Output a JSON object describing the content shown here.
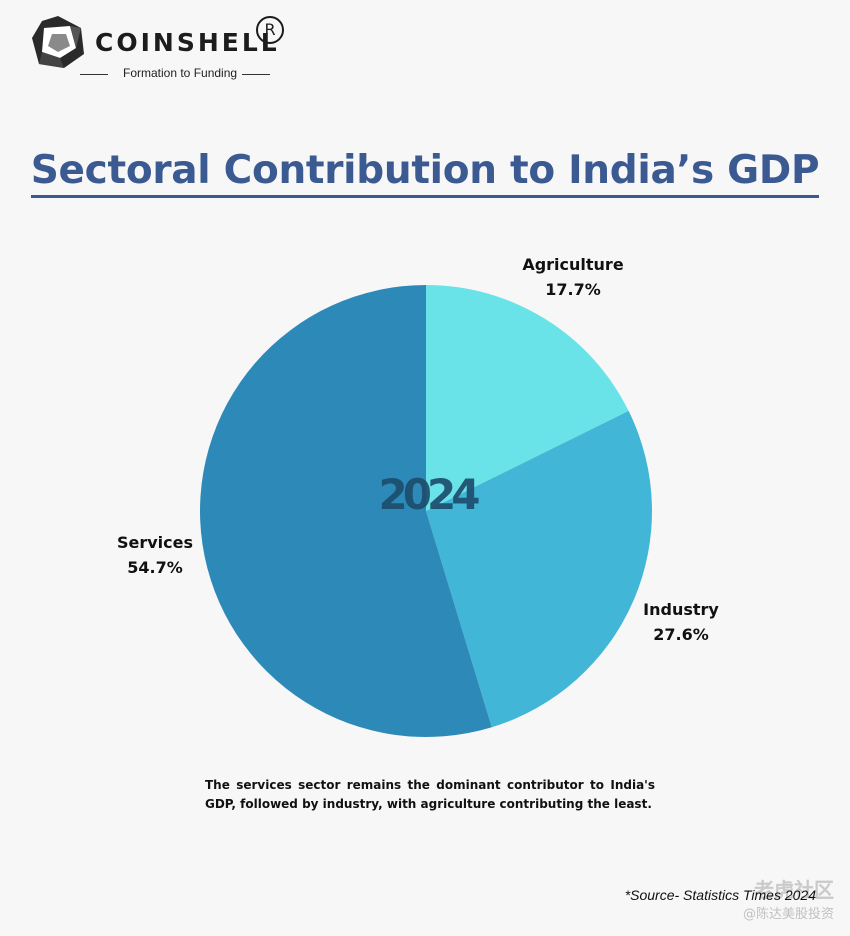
{
  "brand": {
    "name": "COINSHELL",
    "registered_mark": "R",
    "tagline": "Formation to Funding"
  },
  "title": "Sectoral Contribution to India’s GDP",
  "center_label": "2024",
  "caption": "The services sector remains the dominant contributor to India's GDP, followed by industry, with agriculture contributing the least.",
  "source": "*Source- Statistics Times 2024",
  "watermark": {
    "brand": "老虎社区",
    "user": "@陈达美股投资"
  },
  "colors": {
    "title": "#3a5a91",
    "agriculture": "#6ae3e8",
    "industry": "#42b6d6",
    "services": "#2d8ab8",
    "background": "#f7f7f7"
  },
  "chart_data": {
    "type": "pie",
    "title": "Sectoral Contribution to India’s GDP",
    "categories": [
      "Agriculture",
      "Industry",
      "Services"
    ],
    "values": [
      17.7,
      27.6,
      54.7
    ],
    "value_labels": [
      "17.7%",
      "27.6%",
      "54.7%"
    ],
    "unit": "%",
    "start_angle_deg": 0,
    "direction": "clockwise from top"
  }
}
